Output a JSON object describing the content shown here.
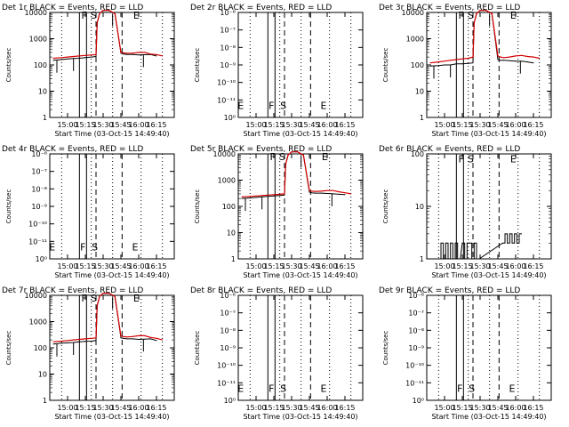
{
  "figure": {
    "x_axis_label": "Start Time (03-Oct-15 14:49:40)",
    "y_axis_label": "Counts/sec",
    "x_tick_labels": [
      "15:00",
      "15:15",
      "15:30",
      "15:45",
      "16:00",
      "16:15"
    ],
    "x_tick_minutes": [
      15,
      30,
      45,
      60,
      75,
      90
    ],
    "x_range_minutes": [
      0,
      105
    ],
    "solid_vertical_minutes": [
      25,
      31
    ],
    "dashed_vertical_minutes": [
      39,
      61
    ],
    "dotted_vertical_minutes": [
      10,
      35,
      53,
      77,
      95
    ],
    "colors": {
      "events": "#000000",
      "lld": "#d40000",
      "axis": "#000000",
      "background": "#ffffff"
    }
  },
  "chart_data": [
    {
      "type": "line",
      "detector": "Det 1r",
      "title": "Det 1r BLACK = Events, RED = LLD",
      "scale": "log",
      "ylim": [
        1,
        10000
      ],
      "y_tick_labels": [
        "1",
        "10",
        "100",
        "1000",
        "10000"
      ],
      "y_tick_values": [
        1,
        10,
        100,
        1000,
        10000
      ],
      "markers": [
        {
          "label": "F",
          "minute": 29,
          "y": 8000
        },
        {
          "label": "S",
          "minute": 37,
          "y": 8000
        },
        {
          "label": "E",
          "minute": 73,
          "y": 8000
        }
      ],
      "series": [
        {
          "name": "Events",
          "x": [
            3,
            10,
            15,
            20,
            25,
            30,
            35,
            39,
            40,
            42,
            45,
            50,
            55,
            60,
            62,
            65,
            70,
            75,
            80,
            85,
            90
          ],
          "y": [
            150,
            160,
            170,
            175,
            180,
            190,
            200,
            210,
            4000,
            9000,
            12000,
            12000,
            9000,
            280,
            260,
            250,
            250,
            240,
            245,
            250,
            220
          ]
        },
        {
          "name": "LLD",
          "x": [
            3,
            10,
            15,
            20,
            25,
            30,
            35,
            39,
            40,
            42,
            45,
            50,
            55,
            60,
            62,
            65,
            70,
            75,
            80,
            85,
            90,
            95
          ],
          "y": [
            180,
            190,
            200,
            210,
            220,
            230,
            240,
            250,
            4000,
            9000,
            12000,
            12000,
            9000,
            300,
            290,
            280,
            280,
            300,
            300,
            260,
            250,
            220
          ]
        }
      ]
    },
    {
      "type": "line",
      "detector": "Det 2r",
      "title": "Det 2r BLACK = Events, RED = LLD",
      "scale": "linear_exp",
      "ylim": [
        1,
        1000000
      ],
      "y_tick_labels": [
        "10⁰",
        "10⁻¹¹",
        "10⁻¹⁰",
        "10⁻⁹",
        "10⁻⁸",
        "10⁻⁷",
        "10⁻⁶"
      ],
      "y_tick_values": [
        1,
        10,
        100,
        1000,
        10000,
        100000,
        1000000
      ],
      "markers": [
        {
          "label": "E",
          "minute": 2,
          "y": 5
        },
        {
          "label": "F",
          "minute": 28,
          "y": 5
        },
        {
          "label": "S",
          "minute": 38,
          "y": 5
        },
        {
          "label": "E",
          "minute": 72,
          "y": 5
        }
      ],
      "series": []
    },
    {
      "type": "line",
      "detector": "Det 3r",
      "title": "Det 3r BLACK = Events, RED = LLD",
      "scale": "log",
      "ylim": [
        1,
        10000
      ],
      "y_tick_labels": [
        "1",
        "10",
        "100",
        "1000",
        "10000"
      ],
      "y_tick_values": [
        1,
        10,
        100,
        1000,
        10000
      ],
      "markers": [
        {
          "label": "F",
          "minute": 29,
          "y": 8000
        },
        {
          "label": "S",
          "minute": 37,
          "y": 8000
        },
        {
          "label": "E",
          "minute": 73,
          "y": 8000
        }
      ],
      "series": [
        {
          "name": "Events",
          "x": [
            3,
            10,
            15,
            20,
            25,
            30,
            35,
            39,
            40,
            42,
            45,
            50,
            55,
            60,
            62,
            65,
            70,
            75,
            80,
            85,
            90
          ],
          "y": [
            90,
            95,
            100,
            100,
            110,
            110,
            115,
            120,
            4000,
            9000,
            12000,
            12000,
            9000,
            160,
            150,
            150,
            145,
            140,
            140,
            130,
            120
          ]
        },
        {
          "name": "LLD",
          "x": [
            3,
            10,
            15,
            20,
            25,
            30,
            35,
            39,
            40,
            42,
            45,
            50,
            55,
            60,
            62,
            65,
            70,
            75,
            80,
            85,
            90,
            95
          ],
          "y": [
            120,
            130,
            140,
            150,
            160,
            170,
            180,
            200,
            4000,
            9000,
            12000,
            12000,
            9000,
            220,
            200,
            190,
            200,
            220,
            230,
            210,
            200,
            180
          ]
        }
      ]
    },
    {
      "type": "line",
      "detector": "Det 4r",
      "title": "Det 4r BLACK = Events, RED = LLD",
      "scale": "linear_exp",
      "ylim": [
        1,
        1000000
      ],
      "y_tick_labels": [
        "10⁰",
        "10⁻¹¹",
        "10⁻¹⁰",
        "10⁻⁹",
        "10⁻⁸",
        "10⁻⁷",
        "10⁻⁶"
      ],
      "y_tick_values": [
        1,
        10,
        100,
        1000,
        10000,
        100000,
        1000000
      ],
      "markers": [
        {
          "label": "E",
          "minute": 2,
          "y": 5
        },
        {
          "label": "F",
          "minute": 28,
          "y": 5
        },
        {
          "label": "S",
          "minute": 38,
          "y": 5
        },
        {
          "label": "E",
          "minute": 72,
          "y": 5
        }
      ],
      "series": []
    },
    {
      "type": "line",
      "detector": "Det 5r",
      "title": "Det 5r BLACK = Events, RED = LLD",
      "scale": "log",
      "ylim": [
        1,
        10000
      ],
      "y_tick_labels": [
        "1",
        "10",
        "100",
        "1000",
        "10000"
      ],
      "y_tick_values": [
        1,
        10,
        100,
        1000,
        10000
      ],
      "markers": [
        {
          "label": "F",
          "minute": 29,
          "y": 8000
        },
        {
          "label": "S",
          "minute": 37,
          "y": 8000
        },
        {
          "label": "E",
          "minute": 73,
          "y": 8000
        }
      ],
      "series": [
        {
          "name": "Events",
          "x": [
            3,
            10,
            15,
            20,
            25,
            30,
            35,
            39,
            40,
            42,
            45,
            50,
            55,
            60,
            62,
            65,
            70,
            75,
            80,
            85,
            90
          ],
          "y": [
            200,
            210,
            220,
            230,
            240,
            250,
            260,
            270,
            4000,
            9000,
            12000,
            12000,
            9000,
            350,
            330,
            320,
            320,
            310,
            300,
            290,
            280
          ]
        },
        {
          "name": "LLD",
          "x": [
            3,
            10,
            15,
            20,
            25,
            30,
            35,
            39,
            40,
            42,
            45,
            50,
            55,
            60,
            62,
            65,
            70,
            75,
            80,
            85,
            90,
            95
          ],
          "y": [
            230,
            240,
            250,
            260,
            270,
            280,
            290,
            300,
            4000,
            9000,
            12000,
            12000,
            9000,
            400,
            380,
            370,
            380,
            400,
            400,
            360,
            330,
            300
          ]
        }
      ]
    },
    {
      "type": "line",
      "detector": "Det 6r",
      "title": "Det 6r BLACK = Events, RED = LLD",
      "scale": "log",
      "ylim": [
        1,
        100
      ],
      "y_tick_labels": [
        "1",
        "10",
        "100"
      ],
      "y_tick_values": [
        1,
        10,
        100
      ],
      "markers": [
        {
          "label": "F",
          "minute": 29,
          "y": 80
        },
        {
          "label": "S",
          "minute": 37,
          "y": 80
        },
        {
          "label": "E",
          "minute": 73,
          "y": 80
        }
      ],
      "series": [
        {
          "name": "Events",
          "x": [
            10,
            12,
            14,
            16,
            18,
            20,
            22,
            24,
            26,
            30,
            32,
            34,
            36,
            38,
            40,
            42,
            64,
            66,
            68,
            70,
            72,
            74,
            76,
            78
          ],
          "y": [
            1,
            2,
            1,
            2,
            1,
            2,
            1,
            2,
            1,
            2,
            1,
            2,
            2,
            1,
            2,
            1,
            2,
            3,
            2,
            3,
            2,
            3,
            2,
            3
          ]
        }
      ]
    },
    {
      "type": "line",
      "detector": "Det 7r",
      "title": "Det 7r BLACK = Events, RED = LLD",
      "scale": "log",
      "ylim": [
        1,
        10000
      ],
      "y_tick_labels": [
        "1",
        "10",
        "100",
        "1000",
        "10000"
      ],
      "y_tick_values": [
        1,
        10,
        100,
        1000,
        10000
      ],
      "markers": [
        {
          "label": "F",
          "minute": 29,
          "y": 8000
        },
        {
          "label": "S",
          "minute": 37,
          "y": 8000
        },
        {
          "label": "E",
          "minute": 73,
          "y": 8000
        }
      ],
      "series": [
        {
          "name": "Events",
          "x": [
            3,
            10,
            15,
            20,
            25,
            30,
            35,
            39,
            40,
            42,
            45,
            50,
            55,
            60,
            62,
            65,
            70,
            75,
            80,
            85,
            90
          ],
          "y": [
            140,
            150,
            155,
            160,
            170,
            175,
            180,
            190,
            4000,
            9000,
            12000,
            12000,
            9000,
            240,
            230,
            220,
            220,
            210,
            215,
            220,
            190
          ]
        },
        {
          "name": "LLD",
          "x": [
            3,
            10,
            15,
            20,
            25,
            30,
            35,
            39,
            40,
            42,
            45,
            50,
            55,
            60,
            62,
            65,
            70,
            75,
            80,
            85,
            90,
            95
          ],
          "y": [
            170,
            180,
            190,
            200,
            210,
            220,
            230,
            240,
            4000,
            9000,
            12000,
            12000,
            9000,
            280,
            270,
            260,
            270,
            290,
            290,
            250,
            230,
            200
          ]
        }
      ]
    },
    {
      "type": "line",
      "detector": "Det 8r",
      "title": "Det 8r BLACK = Events, RED = LLD",
      "scale": "linear_exp",
      "ylim": [
        1,
        1000000
      ],
      "y_tick_labels": [
        "10⁰",
        "10⁻¹¹",
        "10⁻¹⁰",
        "10⁻⁹",
        "10⁻⁸",
        "10⁻⁷",
        "10⁻⁶"
      ],
      "y_tick_values": [
        1,
        10,
        100,
        1000,
        10000,
        100000,
        1000000
      ],
      "markers": [
        {
          "label": "E",
          "minute": 2,
          "y": 5
        },
        {
          "label": "F",
          "minute": 28,
          "y": 5
        },
        {
          "label": "S",
          "minute": 38,
          "y": 5
        },
        {
          "label": "E",
          "minute": 72,
          "y": 5
        }
      ],
      "series": []
    },
    {
      "type": "line",
      "detector": "Det 9r",
      "title": "Det 9r BLACK = Events, RED = LLD",
      "scale": "linear_exp",
      "ylim": [
        1,
        1000000
      ],
      "y_tick_labels": [
        "10⁰",
        "10⁻¹¹",
        "10⁻¹⁰",
        "10⁻⁹",
        "10⁻⁸",
        "10⁻⁷",
        "10⁻⁶"
      ],
      "y_tick_values": [
        1,
        10,
        100,
        1000,
        10000,
        100000,
        1000000
      ],
      "markers": [
        {
          "label": "F",
          "minute": 28,
          "y": 5
        },
        {
          "label": "S",
          "minute": 38,
          "y": 5
        },
        {
          "label": "E",
          "minute": 72,
          "y": 5
        }
      ],
      "series": []
    }
  ]
}
